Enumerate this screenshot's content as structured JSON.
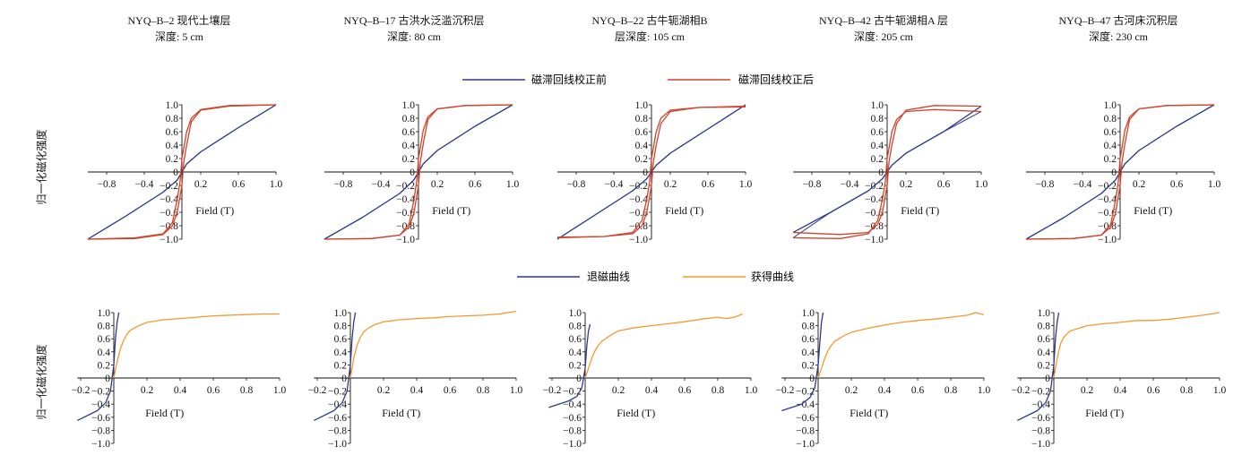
{
  "panels": [
    {
      "sample": "NYQ–B–2 现代土壤层",
      "depth": "深度: 5 cm"
    },
    {
      "sample": "NYQ–B–17 古洪水泛滥沉积层",
      "depth": "深度: 80 cm"
    },
    {
      "sample": "NYQ–B–22 古牛轭湖相B",
      "depth": "层深度: 105 cm"
    },
    {
      "sample": "NYQ–B–42 古牛轭湖相A 层",
      "depth": "深度: 205 cm"
    },
    {
      "sample": "NYQ–B–47 古河床沉积层",
      "depth": "深度: 230 cm"
    }
  ],
  "ylabel": "归一化磁化强度",
  "xlabel": "Field (T)",
  "legend_top": {
    "before": "磁滞回线校正前",
    "after": "磁滞回线校正后"
  },
  "legend_bottom": {
    "demag": "退磁曲线",
    "acq": "获得曲线"
  },
  "colors": {
    "before": "#2b3a8c",
    "after": "#d0432a",
    "demag": "#2b3a8c",
    "acq": "#f39a2c",
    "axis": "#111111"
  },
  "chart_data": [
    {
      "type": "line",
      "title": "NYQ–B–2 现代土壤层 深度: 5 cm",
      "xlabel": "Field (T)",
      "ylabel": "归一化磁化强度",
      "xlim": [
        -1.0,
        1.0
      ],
      "ylim": [
        -1.0,
        1.0
      ],
      "xticks": [
        "−0.8",
        "−0.4",
        "0.2",
        "0.6",
        "1.0"
      ],
      "yticks": [
        "−1.0",
        "−0.8",
        "−0.6",
        "−0.4",
        "−0.2",
        "0",
        "0.2",
        "0.4",
        "0.6",
        "0.8",
        "1.0"
      ],
      "series": [
        {
          "name": "磁滞回线校正前",
          "x": [
            -1.0,
            -0.6,
            -0.2,
            -0.05,
            0,
            0.05,
            0.2,
            0.6,
            1.0
          ],
          "y": [
            -1.0,
            -0.66,
            -0.3,
            -0.12,
            0,
            0.12,
            0.3,
            0.66,
            1.0
          ]
        },
        {
          "name": "磁滞回线校正后",
          "x": [
            -1.0,
            -0.5,
            -0.2,
            -0.1,
            -0.05,
            0,
            0.02,
            0.05,
            0.1,
            0.2,
            0.5,
            1.0
          ],
          "y": [
            -1.0,
            -0.99,
            -0.93,
            -0.8,
            -0.6,
            -0.2,
            0.15,
            0.4,
            0.75,
            0.92,
            0.98,
            1.0
          ]
        }
      ]
    },
    {
      "type": "line",
      "title": "NYQ–B–17 古洪水泛滥沉积层 深度: 80 cm",
      "xlabel": "Field (T)",
      "ylabel": "归一化磁化强度",
      "xlim": [
        -1.0,
        1.0
      ],
      "ylim": [
        -1.0,
        1.0
      ],
      "xticks": [
        "−0.8",
        "−0.4",
        "0.2",
        "0.6",
        "1.0"
      ],
      "yticks": [
        "−1.0",
        "−0.8",
        "−0.6",
        "−0.4",
        "−0.2",
        "0",
        "0.2",
        "0.4",
        "0.6",
        "0.8",
        "1.0"
      ],
      "series": [
        {
          "name": "磁滞回线校正前",
          "x": [
            -1.0,
            -0.6,
            -0.2,
            -0.05,
            0,
            0.05,
            0.2,
            0.6,
            1.0
          ],
          "y": [
            -1.0,
            -0.68,
            -0.32,
            -0.12,
            0,
            0.12,
            0.32,
            0.68,
            1.0
          ]
        },
        {
          "name": "磁滞回线校正后",
          "x": [
            -1.0,
            -0.5,
            -0.2,
            -0.1,
            -0.05,
            0,
            0.02,
            0.05,
            0.1,
            0.2,
            0.5,
            1.0
          ],
          "y": [
            -1.0,
            -0.99,
            -0.94,
            -0.82,
            -0.62,
            -0.2,
            0.15,
            0.42,
            0.78,
            0.94,
            0.99,
            1.0
          ]
        }
      ]
    },
    {
      "type": "line",
      "title": "NYQ–B–22 古牛轭湖相B 层深度: 105 cm",
      "xlabel": "Field (T)",
      "ylabel": "归一化磁化强度",
      "xlim": [
        -1.0,
        1.0
      ],
      "ylim": [
        -1.0,
        1.0
      ],
      "xticks": [
        "−0.8",
        "−0.4",
        "0.2",
        "0.6",
        "1.0"
      ],
      "yticks": [
        "−1.0",
        "−0.8",
        "−0.6",
        "−0.4",
        "−0.2",
        "0",
        "0.2",
        "0.4",
        "0.6",
        "0.8",
        "1.0"
      ],
      "series": [
        {
          "name": "磁滞回线校正前",
          "x": [
            -1.0,
            -0.6,
            -0.2,
            -0.05,
            0,
            0.05,
            0.2,
            0.6,
            1.0
          ],
          "y": [
            -1.0,
            -0.64,
            -0.28,
            -0.1,
            0,
            0.1,
            0.28,
            0.64,
            1.0
          ]
        },
        {
          "name": "磁滞回线校正后",
          "x": [
            -1.0,
            -0.5,
            -0.2,
            -0.1,
            -0.05,
            0,
            0.02,
            0.05,
            0.1,
            0.2,
            0.5,
            1.0
          ],
          "y": [
            -0.97,
            -0.96,
            -0.92,
            -0.8,
            -0.6,
            -0.2,
            0.15,
            0.4,
            0.72,
            0.9,
            0.96,
            0.98
          ]
        }
      ]
    },
    {
      "type": "line",
      "title": "NYQ–B–42 古牛轭湖相A 层 深度: 205 cm",
      "xlabel": "Field (T)",
      "ylabel": "归一化磁化强度",
      "xlim": [
        -1.0,
        1.0
      ],
      "ylim": [
        -1.0,
        1.0
      ],
      "xticks": [
        "−0.8",
        "−0.4",
        "0.2",
        "0.6",
        "1.0"
      ],
      "yticks": [
        "−1.0",
        "−0.8",
        "−0.6",
        "−0.4",
        "−0.2",
        "0",
        "0.2",
        "0.4",
        "0.6",
        "0.8",
        "1.0"
      ],
      "series": [
        {
          "name": "磁滞回线校正前",
          "x": [
            -1.0,
            -0.6,
            -0.2,
            -0.05,
            0,
            0.05,
            0.2,
            0.6,
            1.0
          ],
          "y": [
            -0.9,
            -0.6,
            -0.28,
            -0.1,
            0,
            0.1,
            0.28,
            0.6,
            0.98
          ]
        },
        {
          "name": "磁滞回线校正后",
          "x": [
            -1.0,
            -0.5,
            -0.2,
            -0.1,
            -0.05,
            0,
            0.02,
            0.05,
            0.1,
            0.2,
            0.5,
            1.0
          ],
          "y": [
            -0.9,
            -0.93,
            -0.9,
            -0.78,
            -0.6,
            -0.2,
            0.15,
            0.4,
            0.72,
            0.92,
            0.99,
            0.98
          ]
        }
      ]
    },
    {
      "type": "line",
      "title": "NYQ–B–47 古河床沉积层 深度: 230 cm",
      "xlabel": "Field (T)",
      "ylabel": "归一化磁化强度",
      "xlim": [
        -1.0,
        1.0
      ],
      "ylim": [
        -1.0,
        1.0
      ],
      "xticks": [
        "−0.8",
        "−0.4",
        "0.2",
        "0.6",
        "1.0"
      ],
      "yticks": [
        "−1.0",
        "−0.8",
        "−0.6",
        "−0.4",
        "−0.2",
        "0",
        "0.2",
        "0.4",
        "0.6",
        "0.8",
        "1.0"
      ],
      "series": [
        {
          "name": "磁滞回线校正前",
          "x": [
            -1.0,
            -0.6,
            -0.2,
            -0.05,
            0,
            0.05,
            0.2,
            0.6,
            1.0
          ],
          "y": [
            -1.0,
            -0.68,
            -0.32,
            -0.12,
            0,
            0.12,
            0.32,
            0.68,
            1.0
          ]
        },
        {
          "name": "磁滞回线校正后",
          "x": [
            -1.0,
            -0.5,
            -0.2,
            -0.1,
            -0.05,
            0,
            0.02,
            0.05,
            0.1,
            0.2,
            0.5,
            1.0
          ],
          "y": [
            -1.0,
            -0.99,
            -0.94,
            -0.82,
            -0.62,
            -0.2,
            0.15,
            0.42,
            0.78,
            0.94,
            0.99,
            1.0
          ]
        }
      ]
    },
    {
      "type": "line",
      "title": "NYQ–B–2 现代土壤层",
      "xlabel": "Field (T)",
      "ylabel": "归一化磁化强度",
      "xlim": [
        -0.2,
        1.0
      ],
      "ylim": [
        -1.0,
        1.0
      ],
      "xticks": [
        "−0.2",
        "0",
        "0.2",
        "0.4",
        "0.6",
        "0.8",
        "1.0"
      ],
      "yticks": [
        "1.0",
        "0.8",
        "0.6",
        "0.4",
        "0.2",
        "0",
        "−0.2",
        "−0.4",
        "−0.6",
        "−0.8",
        "−1.0"
      ],
      "series": [
        {
          "name": "退磁曲线",
          "x": [
            -0.22,
            -0.1,
            -0.05,
            -0.02,
            0,
            0.01,
            0.02,
            0.03
          ],
          "y": [
            -0.65,
            -0.5,
            -0.38,
            -0.2,
            0.2,
            0.6,
            0.85,
            1.0
          ]
        },
        {
          "name": "获得曲线",
          "x": [
            0,
            0.02,
            0.04,
            0.06,
            0.08,
            0.1,
            0.15,
            0.2,
            0.3,
            0.4,
            0.5,
            0.6,
            0.7,
            0.8,
            0.9,
            1.0
          ],
          "y": [
            0,
            0.25,
            0.45,
            0.58,
            0.67,
            0.73,
            0.8,
            0.85,
            0.89,
            0.91,
            0.93,
            0.95,
            0.96,
            0.97,
            0.98,
            0.98
          ]
        }
      ]
    },
    {
      "type": "line",
      "title": "NYQ–B–17 古洪水泛滥沉积层",
      "xlabel": "Field (T)",
      "ylabel": "归一化磁化强度",
      "xlim": [
        -0.2,
        1.0
      ],
      "ylim": [
        -1.0,
        1.0
      ],
      "xticks": [
        "−0.2",
        "0",
        "0.2",
        "0.4",
        "0.6",
        "0.8",
        "1.0"
      ],
      "yticks": [
        "1.0",
        "0.8",
        "0.6",
        "0.4",
        "0.2",
        "0",
        "−0.2",
        "−0.4",
        "−0.6",
        "−0.8",
        "−1.0"
      ],
      "series": [
        {
          "name": "退磁曲线",
          "x": [
            -0.22,
            -0.1,
            -0.05,
            -0.02,
            0,
            0.01,
            0.02,
            0.03
          ],
          "y": [
            -0.65,
            -0.5,
            -0.38,
            -0.2,
            0.2,
            0.6,
            0.85,
            1.0
          ]
        },
        {
          "name": "获得曲线",
          "x": [
            0,
            0.02,
            0.04,
            0.06,
            0.08,
            0.1,
            0.15,
            0.2,
            0.3,
            0.4,
            0.5,
            0.6,
            0.7,
            0.8,
            0.9,
            1.0
          ],
          "y": [
            0,
            0.3,
            0.5,
            0.62,
            0.7,
            0.75,
            0.82,
            0.86,
            0.89,
            0.91,
            0.92,
            0.94,
            0.95,
            0.96,
            0.98,
            1.02
          ]
        }
      ]
    },
    {
      "type": "line",
      "title": "NYQ–B–22 古牛轭湖相B",
      "xlabel": "Field (T)",
      "ylabel": "归一化磁化强度",
      "xlim": [
        -0.2,
        1.0
      ],
      "ylim": [
        -1.0,
        1.0
      ],
      "xticks": [
        "−0.2",
        "0",
        "0.2",
        "0.4",
        "0.6",
        "0.8",
        "1.0"
      ],
      "yticks": [
        "1.0",
        "0.8",
        "0.6",
        "0.4",
        "0.2",
        "0",
        "−0.2",
        "−0.4",
        "−0.6",
        "−0.8",
        "−1.0"
      ],
      "series": [
        {
          "name": "退磁曲线",
          "x": [
            -0.22,
            -0.1,
            -0.05,
            -0.02,
            0,
            0.01,
            0.02,
            0.03
          ],
          "y": [
            -0.45,
            -0.35,
            -0.28,
            -0.15,
            0.15,
            0.5,
            0.72,
            0.82
          ]
        },
        {
          "name": "获得曲线",
          "x": [
            0,
            0.02,
            0.04,
            0.06,
            0.08,
            0.1,
            0.15,
            0.2,
            0.3,
            0.4,
            0.5,
            0.6,
            0.7,
            0.8,
            0.85,
            0.9,
            0.95
          ],
          "y": [
            0,
            0.15,
            0.3,
            0.42,
            0.5,
            0.56,
            0.65,
            0.72,
            0.77,
            0.8,
            0.83,
            0.86,
            0.9,
            0.93,
            0.91,
            0.93,
            0.98
          ]
        }
      ]
    },
    {
      "type": "line",
      "title": "NYQ–B–42 古牛轭湖相A 层",
      "xlabel": "Field (T)",
      "ylabel": "归一化磁化强度",
      "xlim": [
        -0.2,
        1.0
      ],
      "ylim": [
        -1.0,
        1.0
      ],
      "xticks": [
        "−0.2",
        "0",
        "0.2",
        "0.4",
        "0.6",
        "0.8",
        "1.0"
      ],
      "yticks": [
        "1.0",
        "0.8",
        "0.6",
        "0.4",
        "0.2",
        "0",
        "−0.2",
        "−0.4",
        "−0.6",
        "−0.8",
        "−1.0"
      ],
      "series": [
        {
          "name": "退磁曲线",
          "x": [
            -0.22,
            -0.1,
            -0.05,
            -0.02,
            0,
            0.01,
            0.02,
            0.03
          ],
          "y": [
            -0.5,
            -0.4,
            -0.3,
            -0.15,
            0.2,
            0.55,
            0.85,
            1.0
          ]
        },
        {
          "name": "获得曲线",
          "x": [
            0,
            0.02,
            0.04,
            0.06,
            0.08,
            0.1,
            0.15,
            0.2,
            0.3,
            0.4,
            0.5,
            0.6,
            0.7,
            0.8,
            0.9,
            0.95,
            1.0
          ],
          "y": [
            0,
            0.15,
            0.3,
            0.42,
            0.5,
            0.56,
            0.64,
            0.7,
            0.76,
            0.81,
            0.85,
            0.88,
            0.9,
            0.93,
            0.96,
            1.0,
            0.97
          ]
        }
      ]
    },
    {
      "type": "line",
      "title": "NYQ–B–47 古河床沉积层",
      "xlabel": "Field (T)",
      "ylabel": "归一化磁化强度",
      "xlim": [
        -0.2,
        1.0
      ],
      "ylim": [
        -1.0,
        1.0
      ],
      "xticks": [
        "−0.2",
        "0",
        "0.2",
        "0.4",
        "0.6",
        "0.8",
        "1.0"
      ],
      "yticks": [
        "1.0",
        "0.8",
        "0.6",
        "0.4",
        "0.2",
        "0",
        "−0.2",
        "−0.4",
        "−0.6",
        "−0.8",
        "−1.0"
      ],
      "series": [
        {
          "name": "退磁曲线",
          "x": [
            -0.22,
            -0.1,
            -0.05,
            -0.02,
            0,
            0.01,
            0.02,
            0.03
          ],
          "y": [
            -0.65,
            -0.5,
            -0.38,
            -0.2,
            0.2,
            0.6,
            0.85,
            1.0
          ]
        },
        {
          "name": "获得曲线",
          "x": [
            0,
            0.02,
            0.04,
            0.06,
            0.08,
            0.1,
            0.15,
            0.2,
            0.3,
            0.4,
            0.5,
            0.6,
            0.7,
            0.8,
            0.9,
            1.0
          ],
          "y": [
            0,
            0.3,
            0.52,
            0.62,
            0.68,
            0.72,
            0.76,
            0.8,
            0.83,
            0.85,
            0.88,
            0.88,
            0.9,
            0.93,
            0.96,
            1.0
          ]
        }
      ]
    }
  ]
}
